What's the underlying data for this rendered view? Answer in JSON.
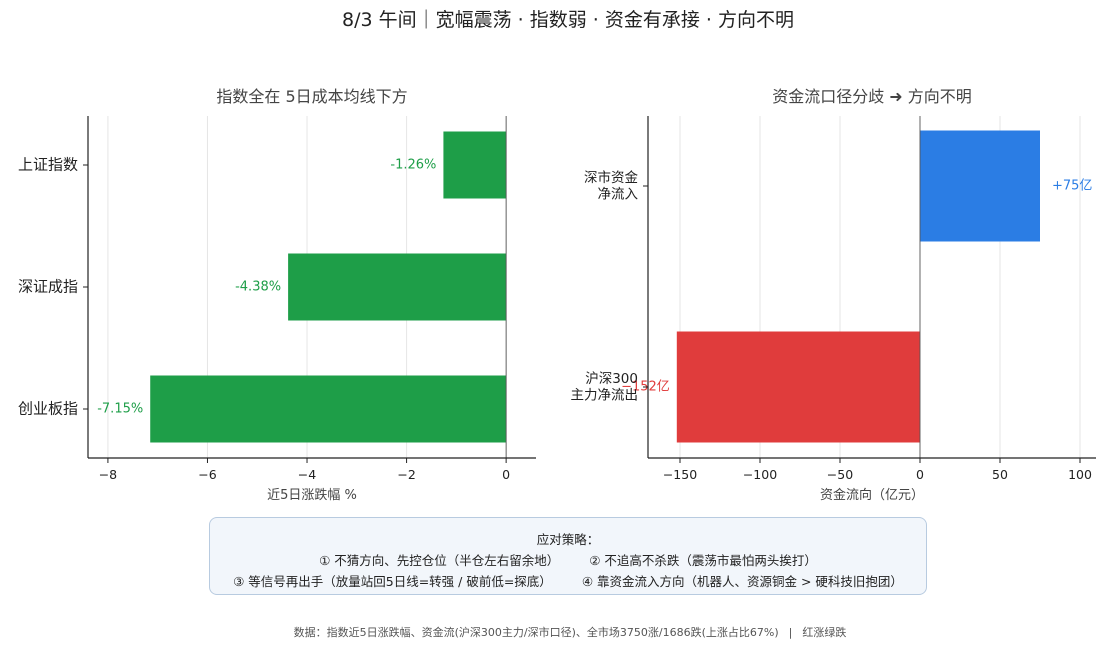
{
  "title": "8/3 午间｜宽幅震荡 · 指数弱 · 资金有承接 · 方向不明",
  "colors": {
    "down_green": "#1e9e48",
    "inflow_blue": "#2b7de4",
    "outflow_red": "#e03c3c",
    "axis": "#222222",
    "grid": "#e6e6e6",
    "text_dark": "#222222",
    "text_muted": "#444444"
  },
  "chart_data": [
    {
      "type": "bar",
      "orientation": "horizontal",
      "title": "指数全在 5日成本均线下方",
      "xlabel": "近5日涨跌幅 %",
      "ylabel": "",
      "categories": [
        "上证指数",
        "深证成指",
        "创业板指"
      ],
      "values": [
        -1.26,
        -4.38,
        -7.15
      ],
      "data_labels": [
        "-1.26%",
        "-4.38%",
        "-7.15%"
      ],
      "xlim": [
        -8.4,
        0.6
      ],
      "xticks": [
        -8,
        -6,
        -4,
        -2,
        0
      ],
      "xtick_labels": [
        "−8",
        "−6",
        "−4",
        "−2",
        "0"
      ],
      "grid": true,
      "bar_color": "#1e9e48"
    },
    {
      "type": "bar",
      "orientation": "horizontal",
      "title": "资金流口径分歧 ➜ 方向不明",
      "xlabel": "资金流向（亿元）",
      "ylabel": "",
      "categories": [
        "深市资金\n净流入",
        "沪深300\n主力净流出"
      ],
      "values": [
        75,
        -152
      ],
      "data_labels": [
        "+75亿",
        "−152亿"
      ],
      "xlim": [
        -170,
        110
      ],
      "xticks": [
        -150,
        -100,
        -50,
        0,
        50,
        100
      ],
      "xtick_labels": [
        "−150",
        "−100",
        "−50",
        "0",
        "50",
        "100"
      ],
      "grid": true,
      "bar_colors": [
        "#2b7de4",
        "#e03c3c"
      ]
    }
  ],
  "strategy": {
    "heading": "应对策略：",
    "item1": "① 不猜方向、先控仓位（半仓左右留余地）",
    "item2": "② 不追高不杀跌（震荡市最怕两头挨打）",
    "item3": "③ 等信号再出手（放量站回5日线=转强 / 破前低=探底）",
    "item4": "④ 靠资金流入方向（机器人、资源铜金 > 硬科技旧抱团）"
  },
  "footer": {
    "source": "数据：指数近5日涨跌幅、资金流(沪深300主力/深市口径)、全市场3750涨/1686跌(上涨占比67%)",
    "separator": "|",
    "note": "红涨绿跌"
  }
}
